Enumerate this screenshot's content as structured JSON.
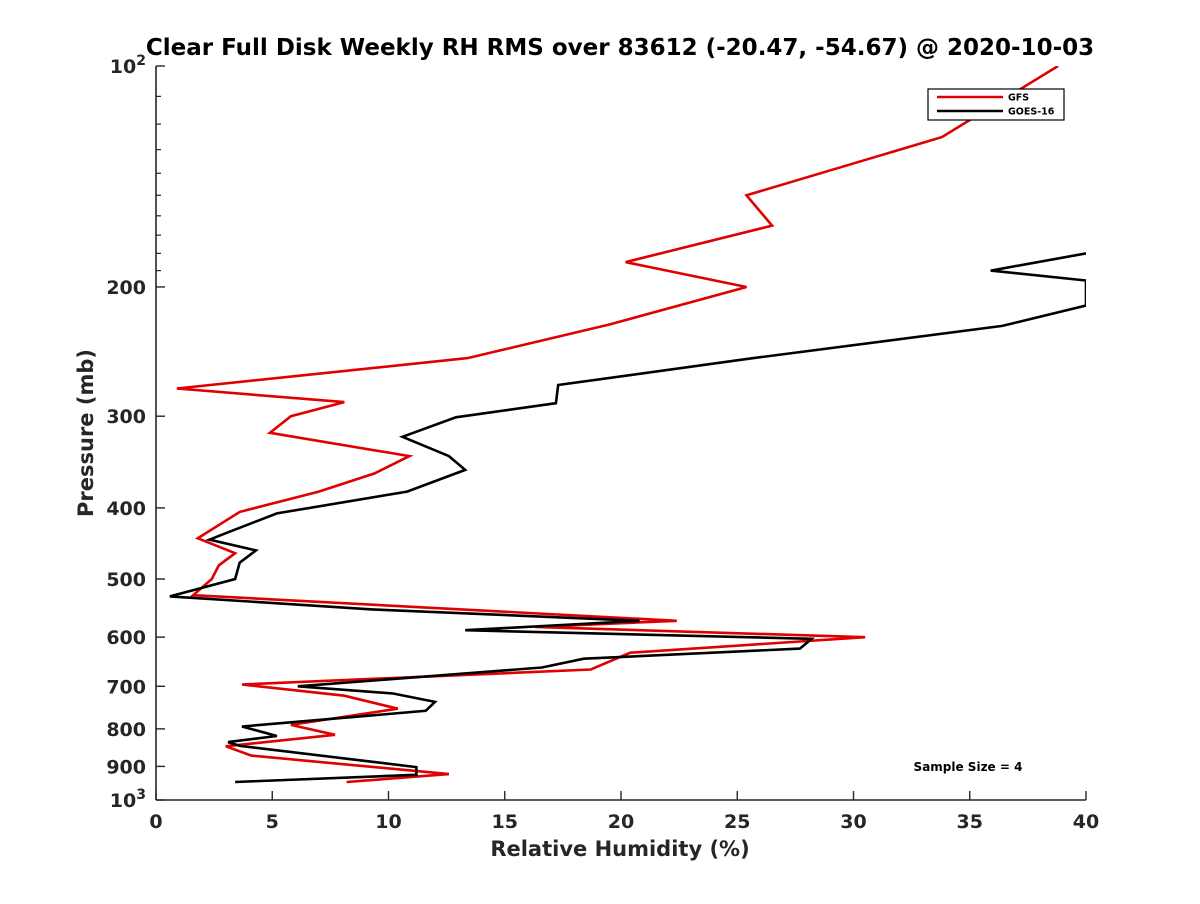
{
  "chart_data": {
    "type": "line",
    "title": "Clear Full Disk Weekly RH RMS over 83612 (-20.47, -54.67) @ 2020-10-03",
    "xlabel": "Relative Humidity (%)",
    "ylabel": "Pressure (mb)",
    "xlim": [
      0,
      40
    ],
    "ylim": [
      100,
      1000
    ],
    "y_scale": "log",
    "y_reversed": true,
    "grid": false,
    "x_ticks": [
      0,
      5,
      10,
      15,
      20,
      25,
      30,
      35,
      40
    ],
    "y_ticks": [
      100,
      200,
      300,
      400,
      500,
      600,
      700,
      800,
      900,
      1000
    ],
    "y_tick_labels": [
      {
        "base": "10",
        "exp": "2"
      },
      {
        "base": "200",
        "exp": ""
      },
      {
        "base": "300",
        "exp": ""
      },
      {
        "base": "400",
        "exp": ""
      },
      {
        "base": "500",
        "exp": ""
      },
      {
        "base": "600",
        "exp": ""
      },
      {
        "base": "700",
        "exp": ""
      },
      {
        "base": "800",
        "exp": ""
      },
      {
        "base": "900",
        "exp": ""
      },
      {
        "base": "10",
        "exp": "3"
      }
    ],
    "legend_position": "top-right",
    "annotation": "Sample Size = 4",
    "series": [
      {
        "name": "GFS",
        "color": "#e00000",
        "points": [
          [
            38.8,
            100
          ],
          [
            33.8,
            125
          ],
          [
            25.4,
            150
          ],
          [
            26.5,
            165
          ],
          [
            20.2,
            185
          ],
          [
            25.4,
            200
          ],
          [
            19.5,
            225
          ],
          [
            13.4,
            250
          ],
          [
            0.9,
            275
          ],
          [
            8.1,
            287
          ],
          [
            5.8,
            300
          ],
          [
            4.9,
            316
          ],
          [
            10.9,
            340
          ],
          [
            9.4,
            359
          ],
          [
            7.0,
            380
          ],
          [
            3.6,
            405
          ],
          [
            1.8,
            440
          ],
          [
            3.4,
            461
          ],
          [
            2.7,
            479
          ],
          [
            2.4,
            500
          ],
          [
            1.6,
            526
          ],
          [
            22.4,
            570
          ],
          [
            16.3,
            581
          ],
          [
            30.5,
            600
          ],
          [
            20.4,
            630
          ],
          [
            18.7,
            664
          ],
          [
            3.7,
            696
          ],
          [
            8.1,
            721
          ],
          [
            10.4,
            751
          ],
          [
            5.8,
            790
          ],
          [
            7.7,
            815
          ],
          [
            3.0,
            845
          ],
          [
            4.1,
            870
          ],
          [
            12.6,
            922
          ],
          [
            8.2,
            945
          ]
        ]
      },
      {
        "name": "GOES-16",
        "color": "#000000",
        "points": [
          [
            40.0,
            180
          ],
          [
            35.9,
            190
          ],
          [
            40.0,
            196
          ],
          [
            40.0,
            212
          ],
          [
            36.4,
            226
          ],
          [
            25.7,
            250
          ],
          [
            17.3,
            272
          ],
          [
            17.2,
            288
          ],
          [
            12.9,
            301
          ],
          [
            10.6,
            320
          ],
          [
            12.6,
            340
          ],
          [
            13.3,
            355
          ],
          [
            10.8,
            380
          ],
          [
            5.2,
            407
          ],
          [
            3.0,
            433
          ],
          [
            2.3,
            442
          ],
          [
            4.3,
            457
          ],
          [
            3.6,
            475
          ],
          [
            3.4,
            500
          ],
          [
            0.6,
            528
          ],
          [
            9.3,
            550
          ],
          [
            20.8,
            570
          ],
          [
            13.3,
            587
          ],
          [
            28.2,
            603
          ],
          [
            27.7,
            622
          ],
          [
            18.4,
            642
          ],
          [
            16.6,
            660
          ],
          [
            6.1,
            700
          ],
          [
            10.2,
            716
          ],
          [
            12.0,
            735
          ],
          [
            11.6,
            756
          ],
          [
            3.7,
            794
          ],
          [
            5.2,
            818
          ],
          [
            3.1,
            834
          ],
          [
            3.6,
            844
          ],
          [
            11.2,
            902
          ],
          [
            11.2,
            924
          ],
          [
            3.4,
            945
          ]
        ]
      }
    ]
  }
}
